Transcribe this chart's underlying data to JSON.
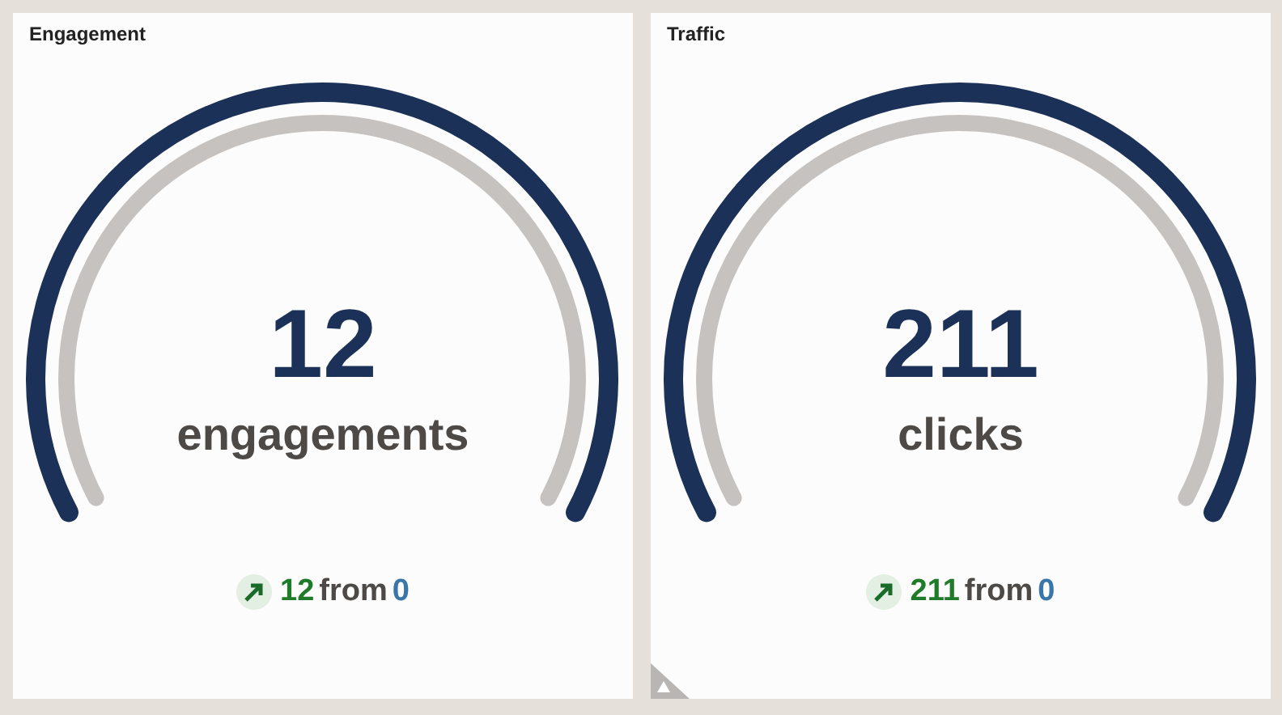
{
  "chart_data": [
    {
      "type": "other",
      "title": "Engagement",
      "categories": [
        "engagements"
      ],
      "values": [
        12
      ],
      "data_labels": true,
      "annotations": [
        "12",
        "from",
        "0"
      ]
    },
    {
      "type": "other",
      "title": "Traffic",
      "categories": [
        "clicks"
      ],
      "values": [
        211
      ],
      "data_labels": true,
      "annotations": [
        "211",
        "from",
        "0"
      ]
    }
  ]
}
